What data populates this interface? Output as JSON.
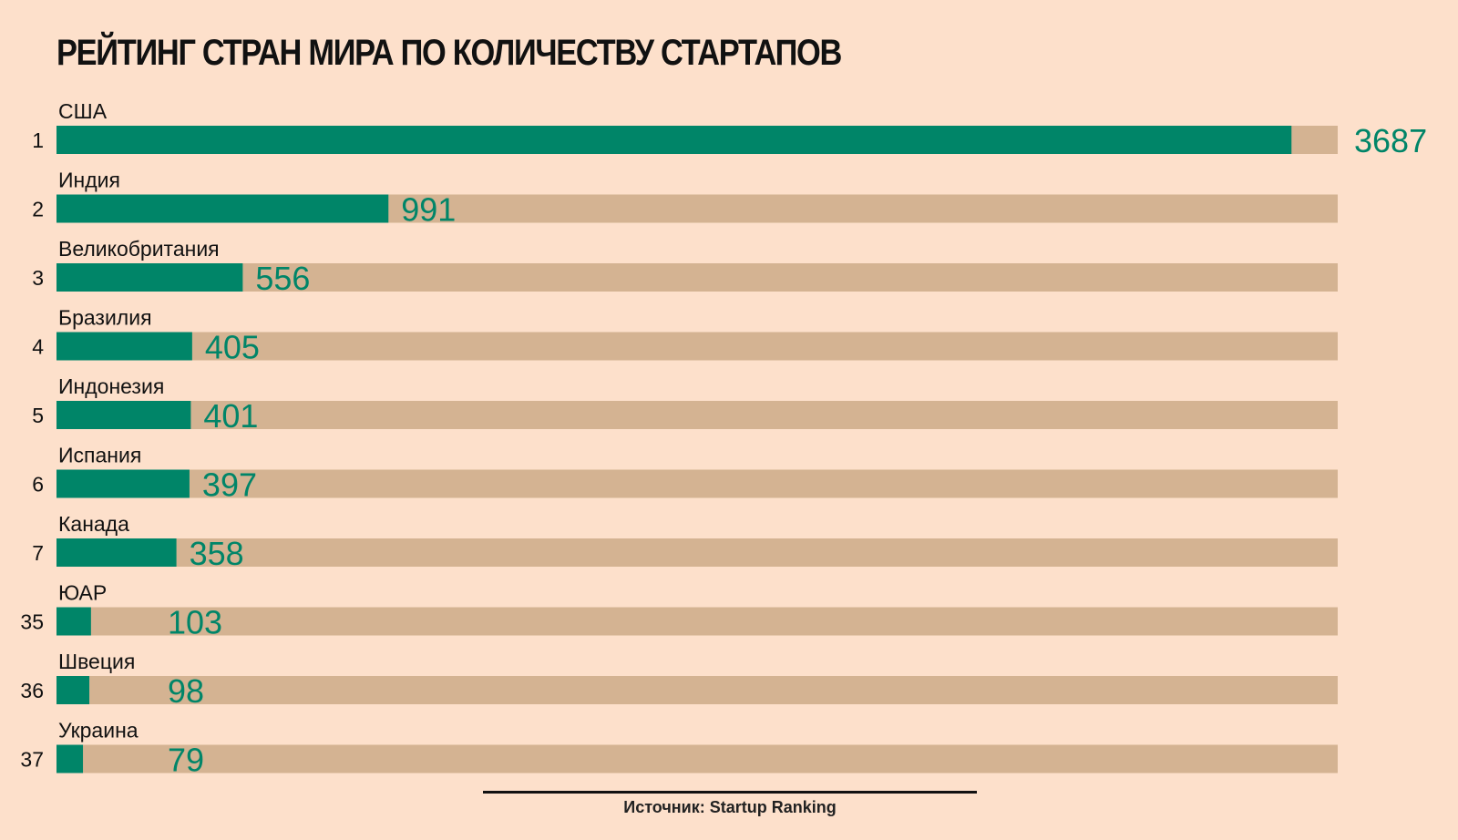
{
  "colors": {
    "background": "#fde0cb",
    "bar_fill": "#008568",
    "bar_track": "#d4b392",
    "text": "#111111"
  },
  "source": "Источник: Startup Ranking",
  "chart_data": {
    "type": "bar",
    "orientation": "horizontal",
    "title": "РЕЙТИНГ СТРАН МИРА ПО КОЛИЧЕСТВУ СТАРТАПОВ",
    "xlabel": "",
    "ylabel": "",
    "xlim": [
      0,
      3825
    ],
    "grid": false,
    "legend": "none",
    "categories": [
      "США",
      "Индия",
      "Великобритания",
      "Бразилия",
      "Индонезия",
      "Испания",
      "Канада",
      "ЮАР",
      "Швеция",
      "Украина"
    ],
    "ranks": [
      "1",
      "2",
      "3",
      "4",
      "5",
      "6",
      "7",
      "35",
      "36",
      "37"
    ],
    "values": [
      3687,
      991,
      556,
      405,
      401,
      397,
      358,
      103,
      98,
      79
    ],
    "value_labels": [
      "3687",
      "991",
      "556",
      "405",
      "401",
      "397",
      "358",
      "103",
      "98",
      "79"
    ]
  }
}
